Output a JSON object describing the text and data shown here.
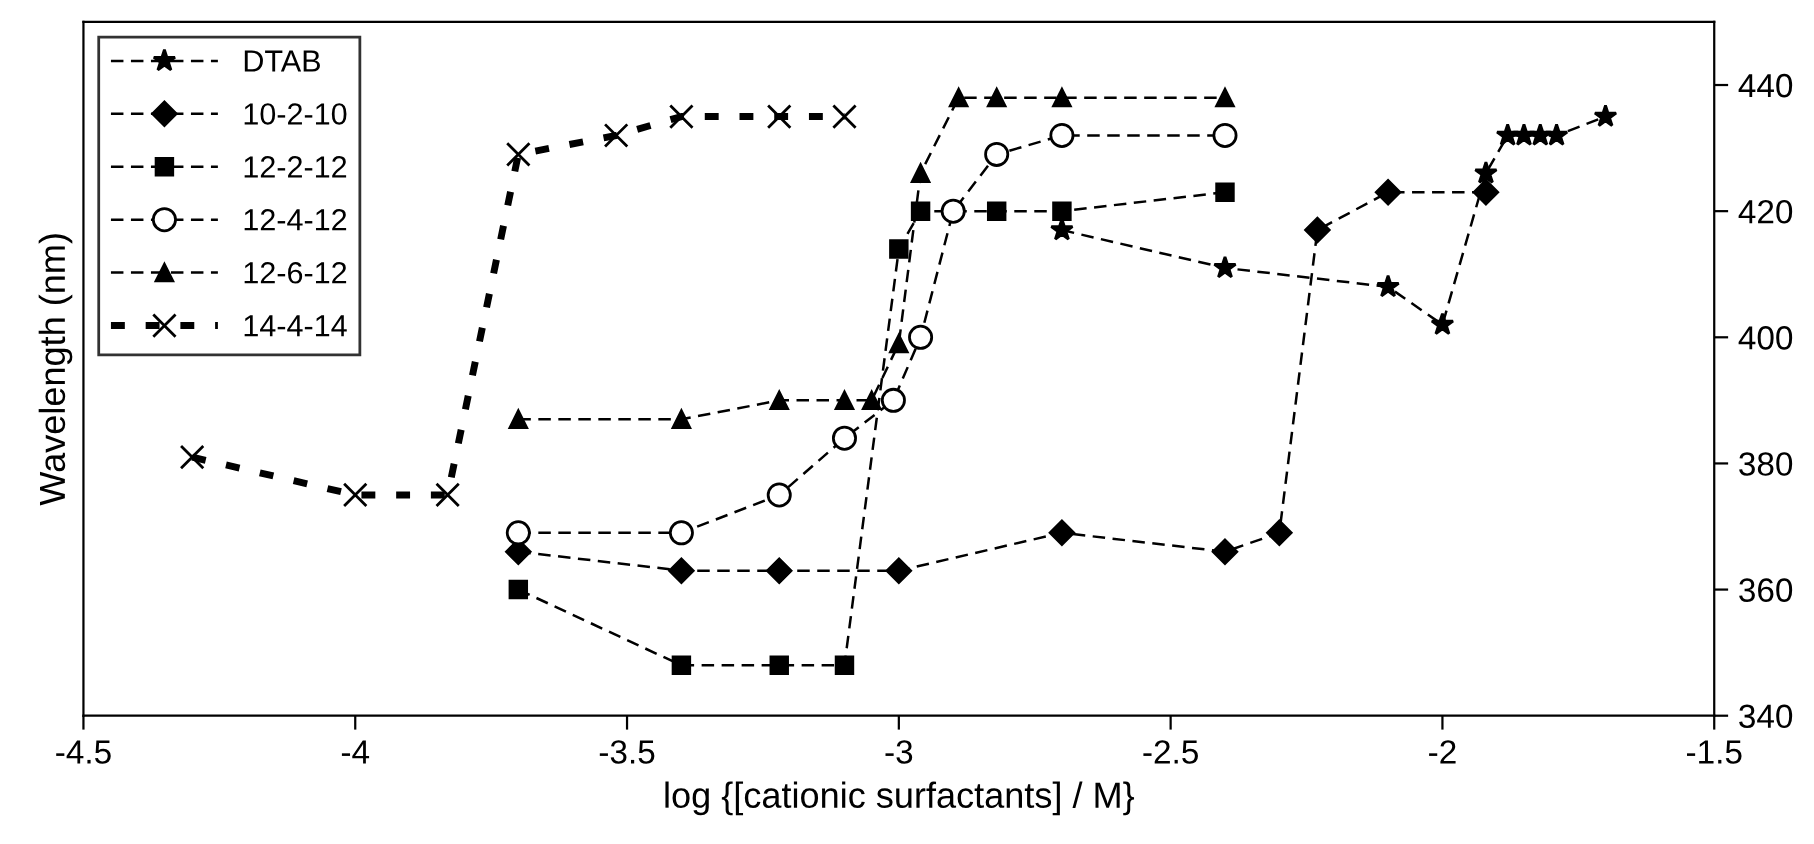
{
  "chart_data": {
    "type": "line",
    "xlabel": "log {[cationic surfactants] / M}",
    "ylabel": "Wavelength (nm)",
    "xlim": [
      -4.5,
      -1.5
    ],
    "xticks": [
      -4.5,
      -4,
      -3.5,
      -3,
      -2.5,
      -2,
      -1.5
    ],
    "ylim": [
      340,
      450
    ],
    "yticks": [
      340,
      360,
      380,
      400,
      420,
      440
    ],
    "grid": false,
    "legend": "top left",
    "series": [
      {
        "name": "DTAB",
        "color": "#000000",
        "marker": "star",
        "line_style": "dashed",
        "x": [
          -2.7,
          -2.4,
          -2.1,
          -2.0,
          -1.92,
          -1.88,
          -1.85,
          -1.82,
          -1.79,
          -1.7
        ],
        "values": [
          417,
          411,
          408,
          402,
          426,
          432,
          432,
          432,
          432,
          435
        ]
      },
      {
        "name": "10-2-10",
        "color": "#000000",
        "marker": "diamond",
        "line_style": "dashed",
        "x": [
          -3.7,
          -3.4,
          -3.22,
          -3.0,
          -2.7,
          -2.4,
          -2.3,
          -2.23,
          -2.1,
          -1.92
        ],
        "values": [
          366,
          363,
          363,
          363,
          369,
          366,
          369,
          417,
          423,
          423
        ]
      },
      {
        "name": "12-2-12",
        "color": "#000000",
        "marker": "square",
        "line_style": "dashed",
        "x": [
          -3.7,
          -3.4,
          -3.22,
          -3.1,
          -3.0,
          -2.96,
          -2.82,
          -2.7,
          -2.4
        ],
        "values": [
          360,
          348,
          348,
          348,
          414,
          420,
          420,
          420,
          423
        ]
      },
      {
        "name": "12-4-12",
        "color": "#000000",
        "marker": "circle",
        "line_style": "dashed",
        "x": [
          -3.7,
          -3.4,
          -3.22,
          -3.1,
          -3.01,
          -2.96,
          -2.9,
          -2.82,
          -2.7,
          -2.4
        ],
        "values": [
          369,
          369,
          375,
          384,
          390,
          400,
          420,
          429,
          432,
          432
        ]
      },
      {
        "name": "12-6-12",
        "color": "#000000",
        "marker": "triangle",
        "line_style": "dashed",
        "x": [
          -3.7,
          -3.4,
          -3.22,
          -3.1,
          -3.05,
          -3.0,
          -2.96,
          -2.89,
          -2.82,
          -2.7,
          -2.4
        ],
        "values": [
          387,
          387,
          390,
          390,
          390,
          399,
          426,
          438,
          438,
          438,
          438
        ]
      },
      {
        "name": "14-4-14",
        "color": "#000000",
        "marker": "cross",
        "line_style": "dotted",
        "x": [
          -4.3,
          -4.0,
          -3.83,
          -3.7,
          -3.52,
          -3.4,
          -3.22,
          -3.1
        ],
        "values": [
          381,
          375,
          375,
          429,
          432,
          435,
          435,
          435
        ]
      }
    ]
  }
}
